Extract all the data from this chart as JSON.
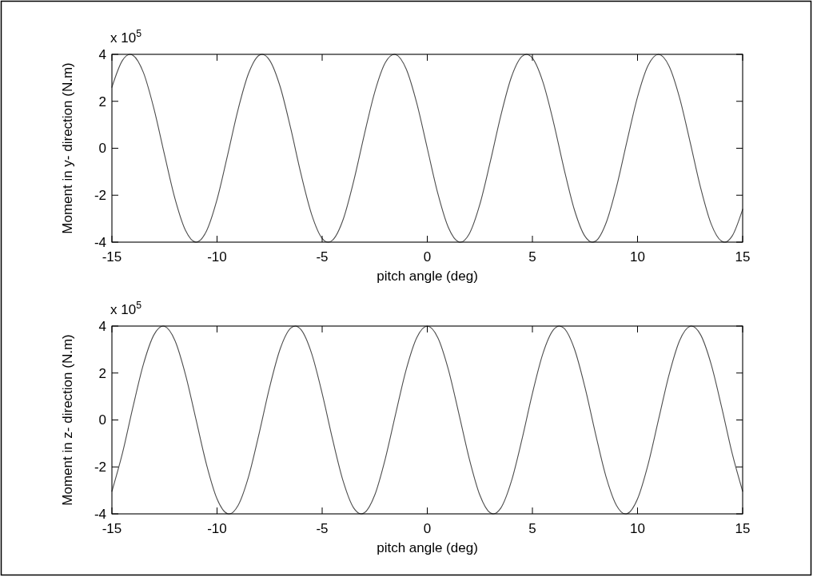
{
  "chart_data": [
    {
      "type": "line",
      "xlabel": "pitch angle (deg)",
      "ylabel": "Moment in y- direction (N.m)",
      "annotations": [
        "x 10$^{5}$"
      ],
      "xlim": [
        -15,
        15
      ],
      "xticks": [
        -15,
        -10,
        -5,
        0,
        5,
        10,
        15
      ],
      "ylim": [
        -4,
        4
      ],
      "yticks": [
        -4,
        -2,
        0,
        2,
        4
      ],
      "color": "#4d4d4d",
      "x": [
        -15,
        -14.5,
        -14.14,
        -14,
        -13.5,
        -13,
        -12.5,
        -12,
        -11.5,
        -11,
        -10.5,
        -10,
        -9.5,
        -9,
        -8.5,
        -8,
        -7.85,
        -7.5,
        -7,
        -6.5,
        -6,
        -5.5,
        -5,
        -4.71,
        -4.5,
        -4,
        -3.5,
        -3,
        -2.5,
        -2,
        -1.57,
        -1.5,
        -1,
        -0.5,
        0,
        0.5,
        1,
        1.5,
        1.57,
        2,
        2.5,
        3,
        3.5,
        4,
        4.5,
        4.71,
        5,
        5.5,
        6,
        6.5,
        7,
        7.5,
        7.85,
        8,
        8.5,
        9,
        9.5,
        10,
        10.5,
        11,
        11.5,
        12,
        12.5,
        13,
        13.5,
        14,
        14.14,
        14.5,
        15
      ],
      "values": [
        2.6,
        3.74,
        4,
        3.96,
        3.22,
        1.68,
        -0.27,
        -2.15,
        -3.5,
        -4,
        -3.52,
        -2.18,
        -0.3,
        1.65,
        3.19,
        3.96,
        4,
        3.75,
        2.63,
        0.86,
        -1.12,
        -2.82,
        -3.84,
        -4,
        -3.91,
        -3.03,
        -1.4,
        0.56,
        2.39,
        3.64,
        4,
        3.99,
        3.37,
        1.92,
        0,
        -1.92,
        -3.37,
        -3.99,
        -4,
        -3.64,
        -2.39,
        -0.56,
        1.4,
        3.03,
        3.91,
        4,
        3.84,
        2.82,
        1.12,
        -0.86,
        -2.63,
        -3.75,
        -4,
        -3.96,
        -3.19,
        -1.65,
        0.3,
        2.18,
        3.52,
        4,
        3.5,
        2.15,
        0.27,
        -1.68,
        -3.22,
        -3.96,
        -4,
        -3.74,
        -2.6
      ]
    },
    {
      "type": "line",
      "xlabel": "pitch angle (deg)",
      "ylabel": "Moment in z- direction (N.m)",
      "annotations": [
        "x 10$^{5}$"
      ],
      "xlim": [
        -15,
        15
      ],
      "xticks": [
        -15,
        -10,
        -5,
        0,
        5,
        10,
        15
      ],
      "ylim": [
        -4,
        4
      ],
      "yticks": [
        -4,
        -2,
        0,
        2,
        4
      ],
      "color": "#4d4d4d",
      "x": [
        -15,
        -14.5,
        -14,
        -13.5,
        -13,
        -12.57,
        -12.5,
        -12,
        -11.5,
        -11,
        -10.5,
        -10,
        -9.5,
        -9.42,
        -9,
        -8.5,
        -8,
        -7.5,
        -7,
        -6.5,
        -6.28,
        -6,
        -5.5,
        -5,
        -4.5,
        -4,
        -3.5,
        -3.14,
        -3,
        -2.5,
        -2,
        -1.5,
        -1,
        -0.5,
        0,
        0.5,
        1,
        1.5,
        2,
        2.5,
        3,
        3.14,
        3.5,
        4,
        4.5,
        5,
        5.5,
        6,
        6.28,
        6.5,
        7,
        7.5,
        8,
        8.5,
        9,
        9.42,
        9.5,
        10,
        10.5,
        11,
        11.5,
        12,
        12.5,
        12.57,
        13,
        13.5,
        14,
        14.5,
        15
      ],
      "values": [
        -3.04,
        -1.42,
        0.55,
        2.38,
        3.63,
        4,
        3.99,
        3.38,
        1.93,
        0.02,
        -1.9,
        -3.36,
        -3.99,
        -4,
        -3.64,
        -2.41,
        -0.58,
        1.39,
        3.02,
        3.91,
        4,
        3.84,
        2.83,
        1.13,
        -0.84,
        -2.61,
        -3.75,
        -4,
        -3.96,
        -3.2,
        -1.66,
        0.28,
        2.16,
        3.51,
        4,
        3.51,
        2.16,
        0.28,
        -1.66,
        -3.2,
        -3.96,
        -4,
        -3.75,
        -2.61,
        -0.84,
        1.13,
        2.83,
        3.84,
        4,
        3.91,
        3.02,
        1.39,
        -0.58,
        -2.41,
        -3.64,
        -4,
        -3.99,
        -3.36,
        -1.9,
        0.02,
        1.93,
        3.38,
        3.99,
        4,
        3.63,
        2.38,
        0.55,
        -1.42,
        -3.04
      ]
    }
  ]
}
